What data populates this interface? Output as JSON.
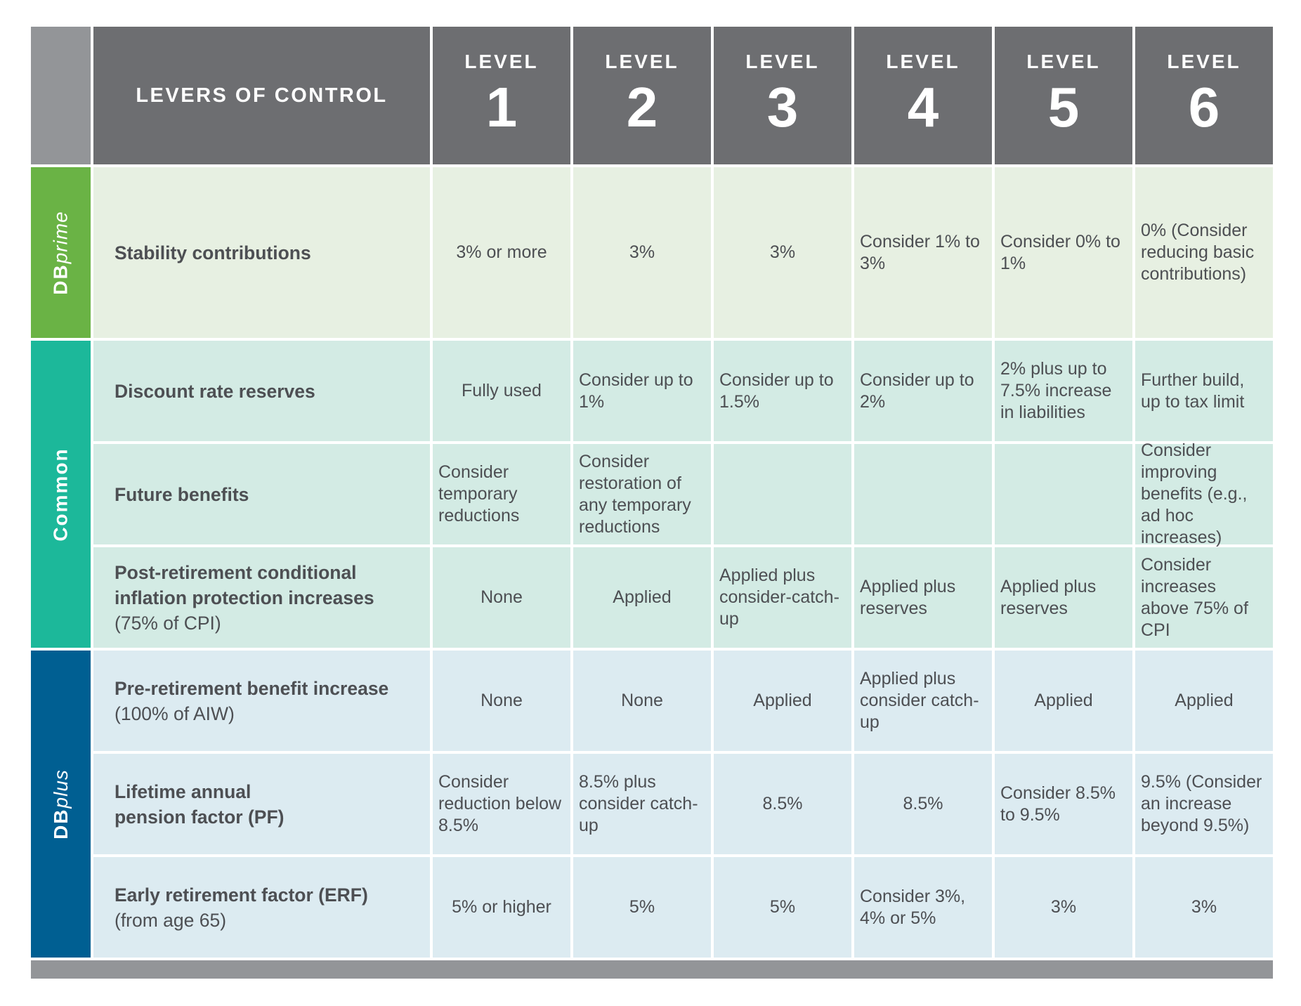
{
  "header": {
    "levers_label": "LEVERS OF CONTROL",
    "level_word": "LEVEL",
    "levels": [
      "1",
      "2",
      "3",
      "4",
      "5",
      "6"
    ]
  },
  "groups": {
    "dbprime": {
      "bold": "DB",
      "italic": "prime"
    },
    "common": {
      "label": "Common"
    },
    "dbplus": {
      "bold": "DB",
      "italic": "plus"
    }
  },
  "rows": [
    {
      "lever": "Stability contributions",
      "lever_sub": "",
      "values": [
        "3% or more",
        "3%",
        "3%",
        "Consider 1% to 3%",
        "Consider 0% to 1%",
        "0% (Consider reducing basic contributions)"
      ]
    },
    {
      "lever": "Discount rate reserves",
      "lever_sub": "",
      "values": [
        "Fully used",
        "Consider up to 1%",
        "Consider up to 1.5%",
        "Consider up to 2%",
        "2% plus up to 7.5% increase in liabilities",
        "Further build, up to tax limit"
      ]
    },
    {
      "lever": "Future benefits",
      "lever_sub": "",
      "values": [
        "Consider temporary reductions",
        "Consider restoration of any temporary reductions",
        "",
        "",
        "",
        "Consider improving benefits (e.g., ad hoc increases)"
      ]
    },
    {
      "lever": "Post-retirement conditional inflation protection increases",
      "lever_sub": "(75% of CPI)",
      "values": [
        "None",
        "Applied",
        "Applied plus consider-catch-up",
        "Applied plus reserves",
        "Applied plus reserves",
        "Consider increases above 75% of CPI"
      ]
    },
    {
      "lever": "Pre-retirement benefit increase",
      "lever_sub": "(100% of AIW)",
      "values": [
        "None",
        "None",
        "Applied",
        "Applied plus consider catch-up",
        "Applied",
        "Applied"
      ]
    },
    {
      "lever": "Lifetime annual pension factor (PF)",
      "lever_sub": "",
      "values": [
        "Consider reduction below 8.5%",
        "8.5%  plus consider catch-up",
        "8.5%",
        "8.5%",
        "Consider 8.5% to 9.5%",
        "9.5% (Consider an increase beyond 9.5%)"
      ]
    },
    {
      "lever": "Early retirement factor (ERF)",
      "lever_sub": "(from age 65)",
      "values": [
        "5% or higher",
        "5%",
        "5%",
        "Consider 3%, 4% or 5%",
        "3%",
        "3%"
      ]
    }
  ],
  "colors": {
    "header": "#6d6e71",
    "corner": "#939598",
    "dbprime": "#6ab345",
    "common": "#1cb89a",
    "dbplus": "#005f92"
  }
}
